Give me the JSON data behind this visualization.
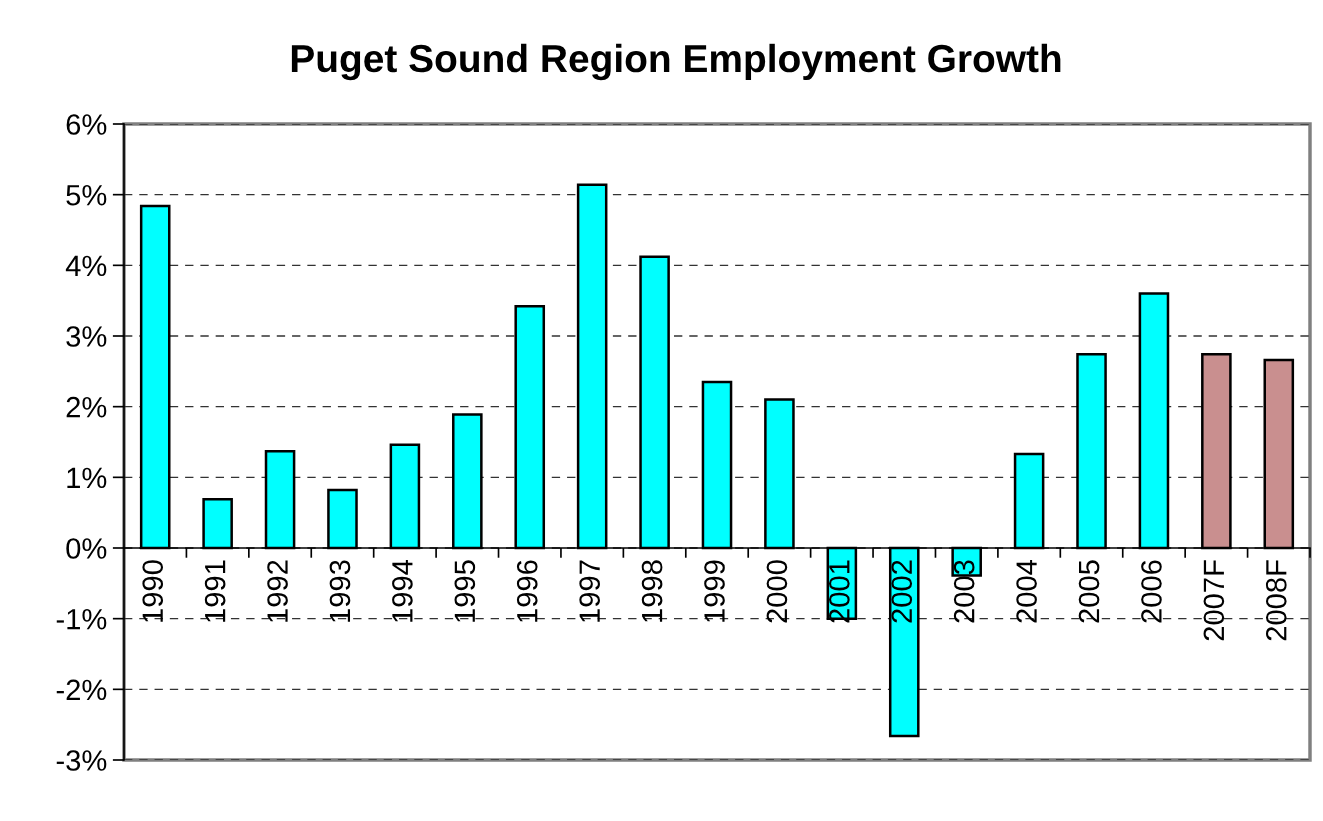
{
  "chart_data": {
    "type": "bar",
    "title": "Puget Sound Region Employment Growth",
    "categories": [
      "1990",
      "1991",
      "1992",
      "1993",
      "1994",
      "1995",
      "1996",
      "1997",
      "1998",
      "1999",
      "2000",
      "2001",
      "2002",
      "2003",
      "2004",
      "2005",
      "2006",
      "2007F",
      "2008F"
    ],
    "values": [
      4.84,
      0.69,
      1.37,
      0.82,
      1.46,
      1.89,
      3.42,
      5.14,
      4.12,
      2.35,
      2.1,
      -1.0,
      -2.66,
      -0.39,
      1.33,
      2.74,
      3.6,
      2.74,
      2.66
    ],
    "colors": [
      "#00ffff",
      "#00ffff",
      "#00ffff",
      "#00ffff",
      "#00ffff",
      "#00ffff",
      "#00ffff",
      "#00ffff",
      "#00ffff",
      "#00ffff",
      "#00ffff",
      "#00ffff",
      "#00ffff",
      "#00ffff",
      "#00ffff",
      "#00ffff",
      "#00ffff",
      "#c98f8f",
      "#c98f8f"
    ],
    "ylim": [
      -3,
      6
    ],
    "yticks": [
      {
        "value": -3,
        "label": "-3%"
      },
      {
        "value": -2,
        "label": "-2%"
      },
      {
        "value": -1,
        "label": "-1%"
      },
      {
        "value": 0,
        "label": "0%"
      },
      {
        "value": 1,
        "label": "1%"
      },
      {
        "value": 2,
        "label": "2%"
      },
      {
        "value": 3,
        "label": "3%"
      },
      {
        "value": 4,
        "label": "4%"
      },
      {
        "value": 5,
        "label": "5%"
      },
      {
        "value": 6,
        "label": "6%"
      }
    ],
    "grid": "y"
  }
}
